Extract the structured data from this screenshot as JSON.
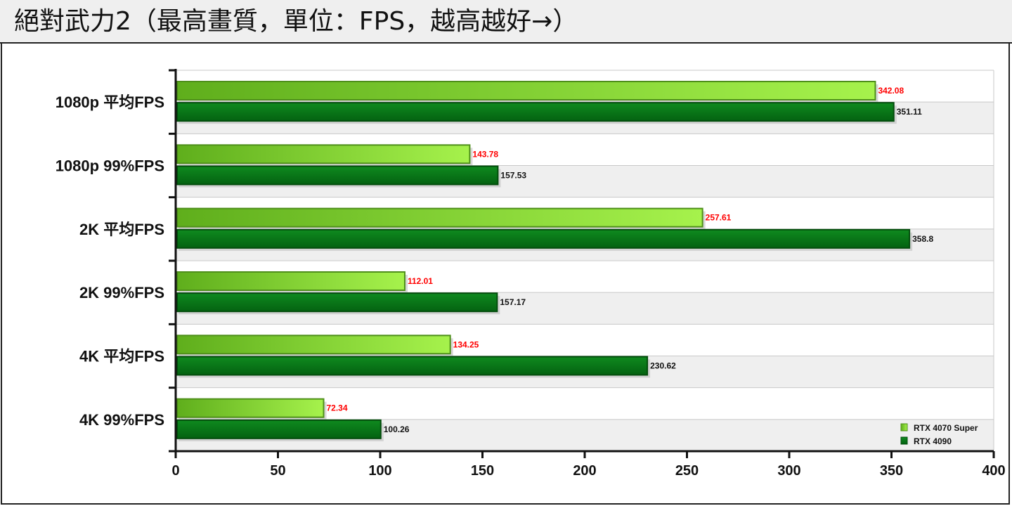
{
  "title": "絕對武力2（最高畫質，單位：FPS，越高越好→）",
  "colors": {
    "series1_light": "#a6f24c",
    "series1_dark": "#5fae1c",
    "series1_stroke": "#4e8f1a",
    "series2_light": "#0f8a1f",
    "series2_dark": "#046211",
    "series2_stroke": "#034d0c",
    "label1": "#ff0000",
    "label2": "#111111",
    "band": "#efefef",
    "grid": "#c8c8c8"
  },
  "chart_data": {
    "type": "bar",
    "orientation": "horizontal",
    "title": "絕對武力2（最高畫質，單位：FPS，越高越好→）",
    "categories": [
      "1080p 平均FPS",
      "1080p 99%FPS",
      "2K 平均FPS",
      "2K 99%FPS",
      "4K 平均FPS",
      "4K 99%FPS"
    ],
    "series": [
      {
        "name": "RTX 4070 Super",
        "values": [
          342.08,
          143.78,
          257.61,
          112.01,
          134.25,
          72.34
        ]
      },
      {
        "name": "RTX 4090",
        "values": [
          351.11,
          157.53,
          358.8,
          157.17,
          230.62,
          100.26
        ]
      }
    ],
    "value_labels": [
      [
        "342.08",
        "143.78",
        "257.61",
        "112.01",
        "134.25",
        "72.34"
      ],
      [
        "351.11",
        "157.53",
        "358.8",
        "157.17",
        "230.62",
        "100.26"
      ]
    ],
    "xlim": [
      0,
      400
    ],
    "xticks": [
      "0",
      "50",
      "100",
      "150",
      "200",
      "250",
      "300",
      "350",
      "400"
    ],
    "xtick_values": [
      0,
      50,
      100,
      150,
      200,
      250,
      300,
      350,
      400
    ],
    "legend_position": "bottom-right",
    "grid": true
  }
}
